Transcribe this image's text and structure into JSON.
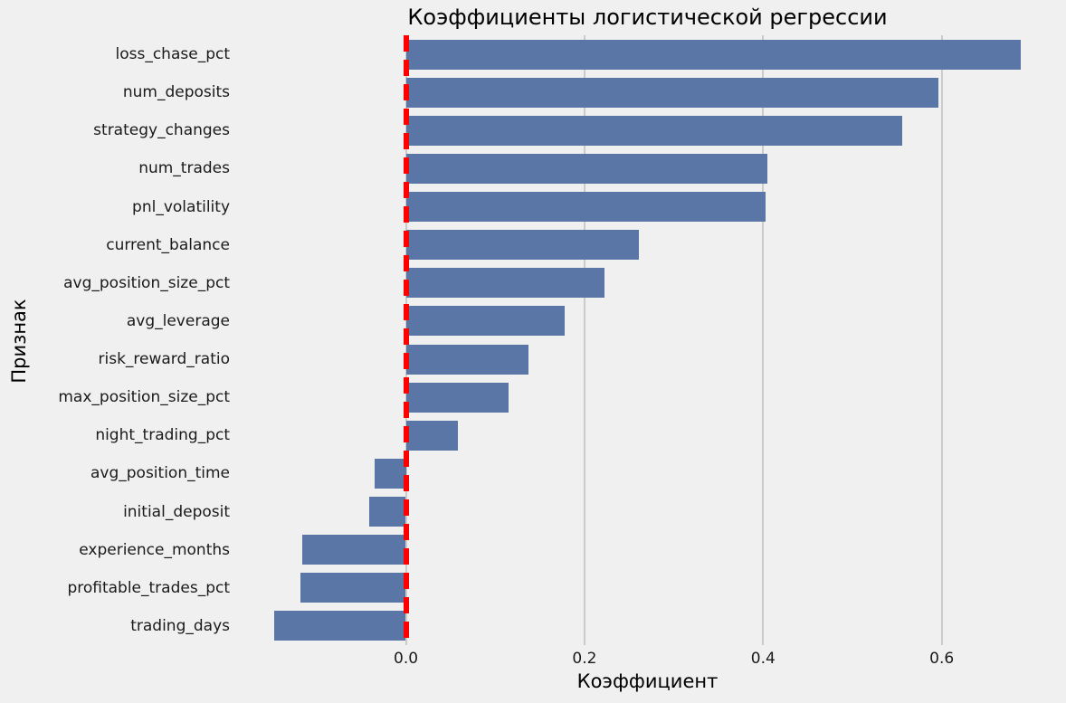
{
  "chart_data": {
    "type": "bar",
    "orientation": "horizontal",
    "title": "Коэффициенты логистической регрессии",
    "xlabel": "Коэффициент",
    "ylabel": "Признак",
    "categories": [
      "loss_chase_pct",
      "num_deposits",
      "strategy_changes",
      "num_trades",
      "pnl_volatility",
      "current_balance",
      "avg_position_size_pct",
      "avg_leverage",
      "risk_reward_ratio",
      "max_position_size_pct",
      "night_trading_pct",
      "avg_position_time",
      "initial_deposit",
      "experience_months",
      "profitable_trades_pct",
      "trading_days"
    ],
    "values": [
      0.688,
      0.596,
      0.555,
      0.404,
      0.402,
      0.26,
      0.222,
      0.177,
      0.137,
      0.114,
      0.058,
      -0.035,
      -0.041,
      -0.116,
      -0.118,
      -0.147
    ],
    "xticks": [
      0,
      0.2,
      0.4,
      0.6
    ],
    "xtick_labels": [
      "0.0",
      "0.2",
      "0.4",
      "0.6"
    ],
    "xlim": [
      -0.189,
      0.73
    ],
    "grid": true,
    "legend": null,
    "zero_line": {
      "x": 0,
      "style": "dashed",
      "color": "#ff0000"
    },
    "colors": {
      "bar": "#5a76a7",
      "background": "#f0f0f0",
      "gridline": "#cbcbcb",
      "text": "#000000"
    }
  }
}
